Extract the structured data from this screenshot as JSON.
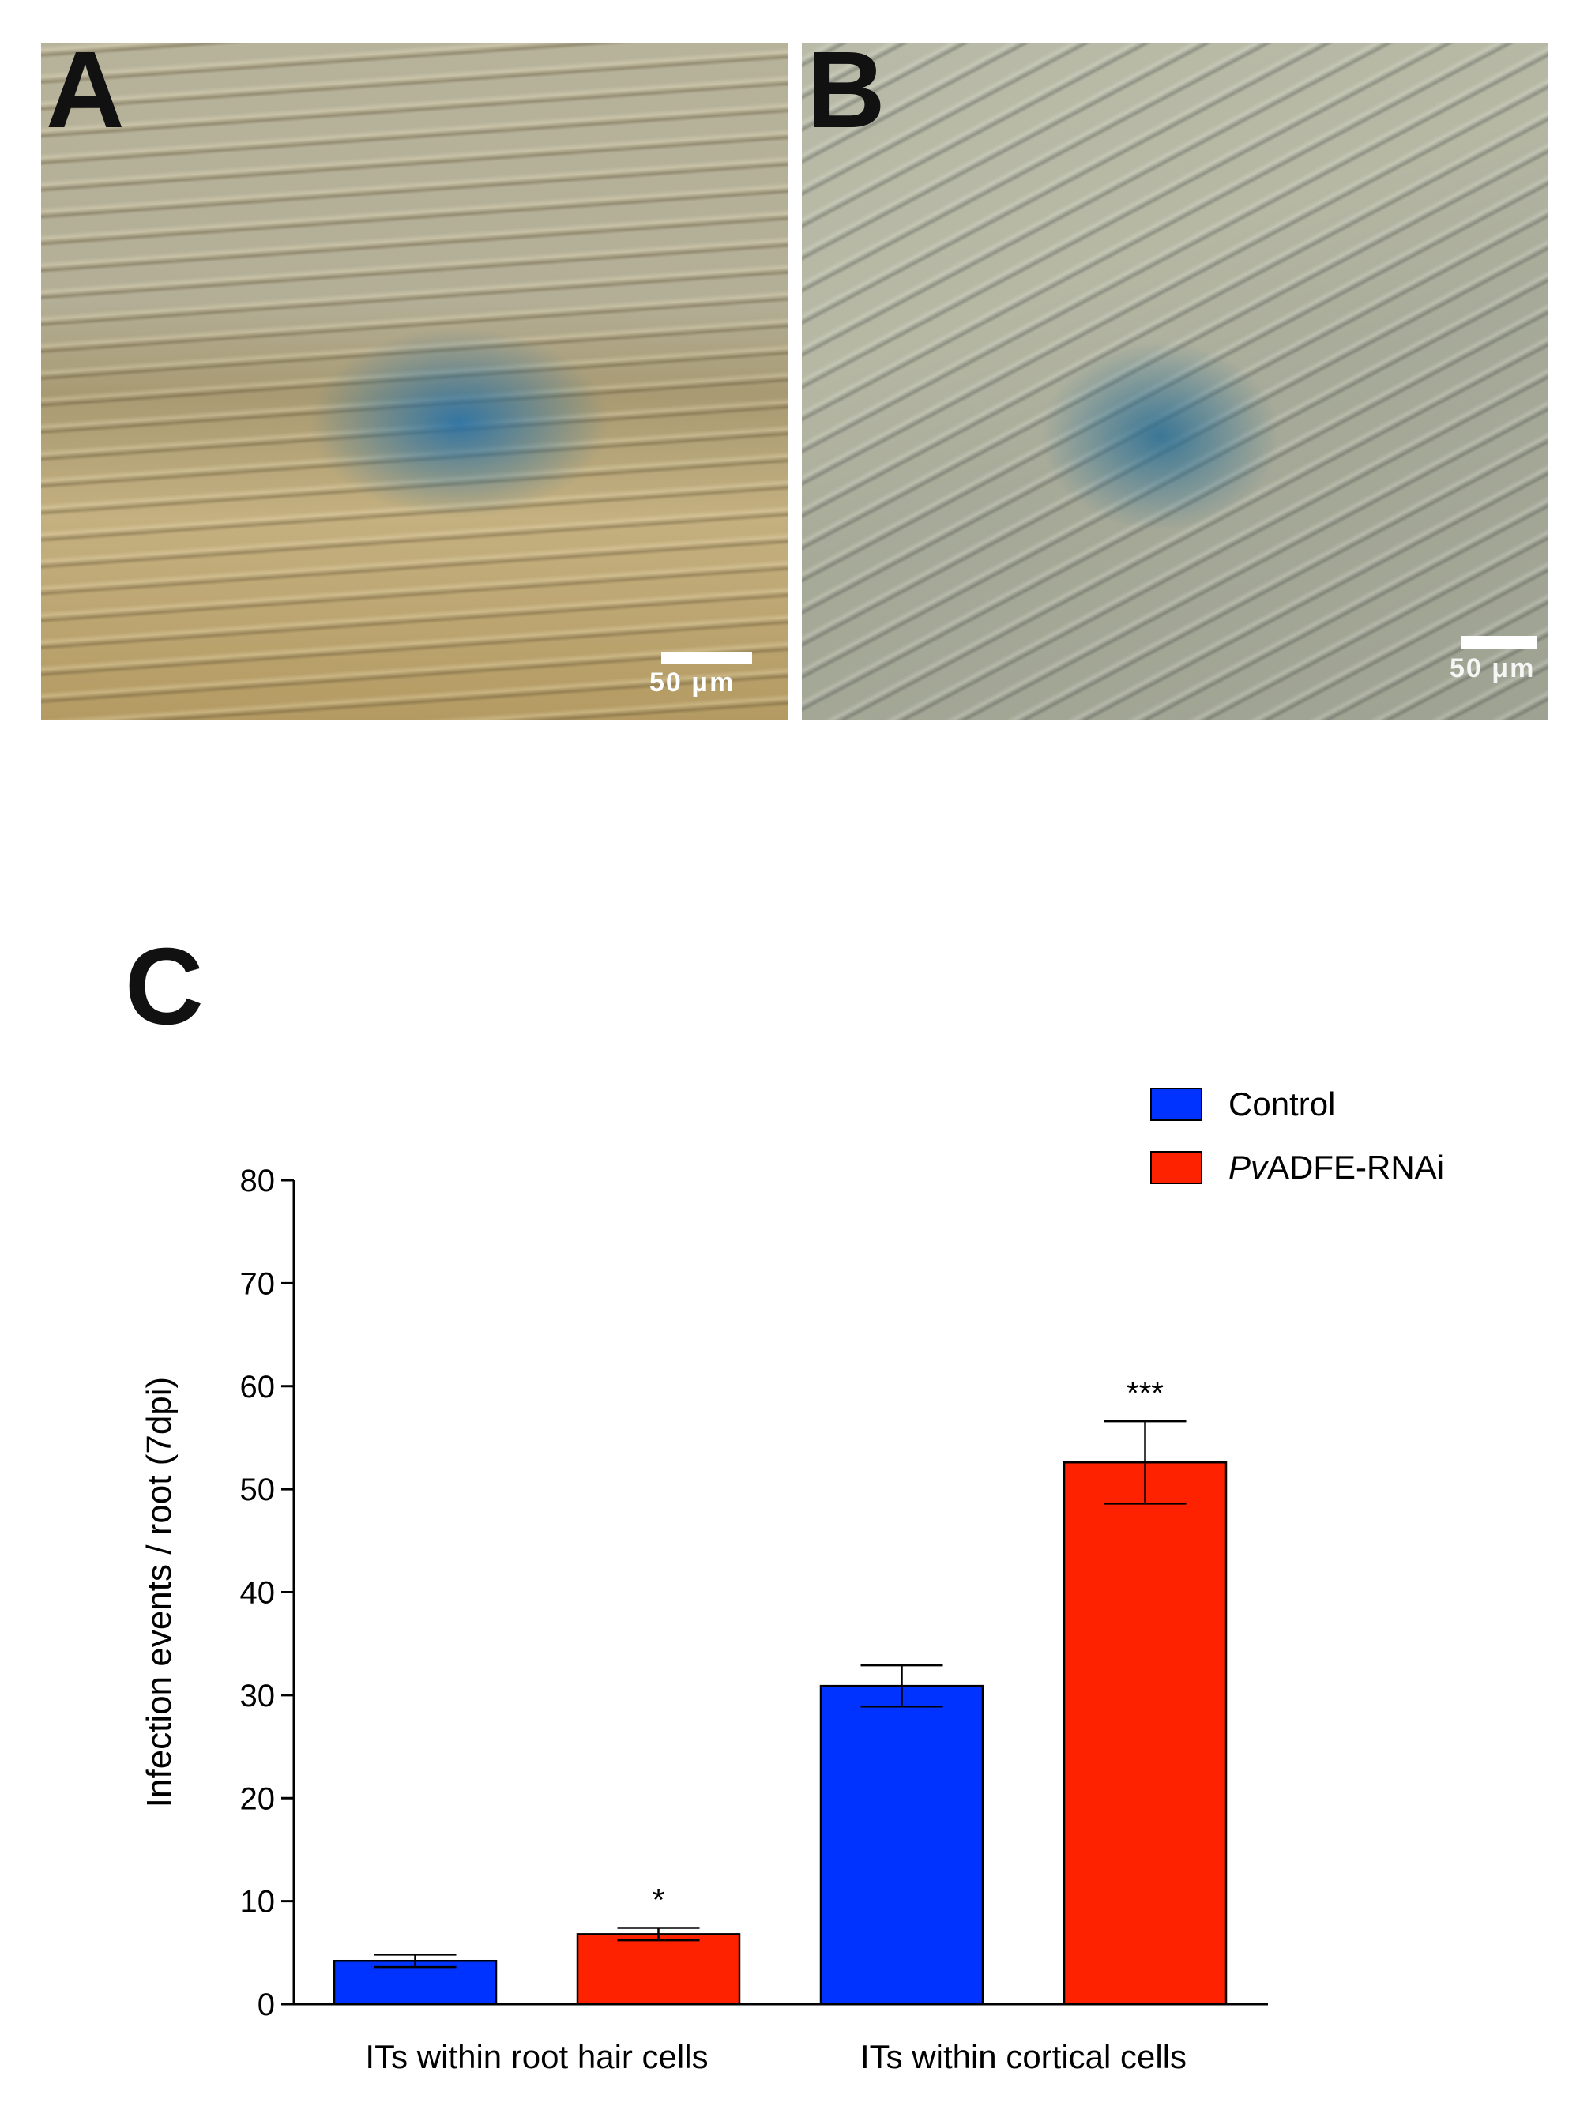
{
  "panels": {
    "a": {
      "letter": "A",
      "scale_label": "50 μm"
    },
    "b": {
      "letter": "B",
      "scale_label": "50 μm"
    },
    "c": {
      "letter": "C"
    }
  },
  "chart_data": {
    "type": "bar",
    "title": "",
    "xlabel": "",
    "ylabel": "Infection  events  / root  (7dpi)",
    "ylim": [
      0,
      80
    ],
    "yticks": [
      0,
      10,
      20,
      30,
      40,
      50,
      60,
      70,
      80
    ],
    "categories": [
      "ITs within root hair cells",
      "ITs within cortical cells"
    ],
    "series": [
      {
        "name": "Control",
        "name_italic_prefix": "",
        "color": "#0033ff",
        "values": [
          4.2,
          30.9
        ],
        "errors": [
          0.6,
          2.0
        ],
        "significance": [
          "",
          ""
        ]
      },
      {
        "name": "ADFE-RNAi",
        "name_italic_prefix": "Pv",
        "color": "#ff2200",
        "values": [
          6.8,
          52.6
        ],
        "errors": [
          0.6,
          4.0
        ],
        "significance": [
          "*",
          "***"
        ]
      }
    ],
    "legend_position": "top-right",
    "grid": false
  }
}
